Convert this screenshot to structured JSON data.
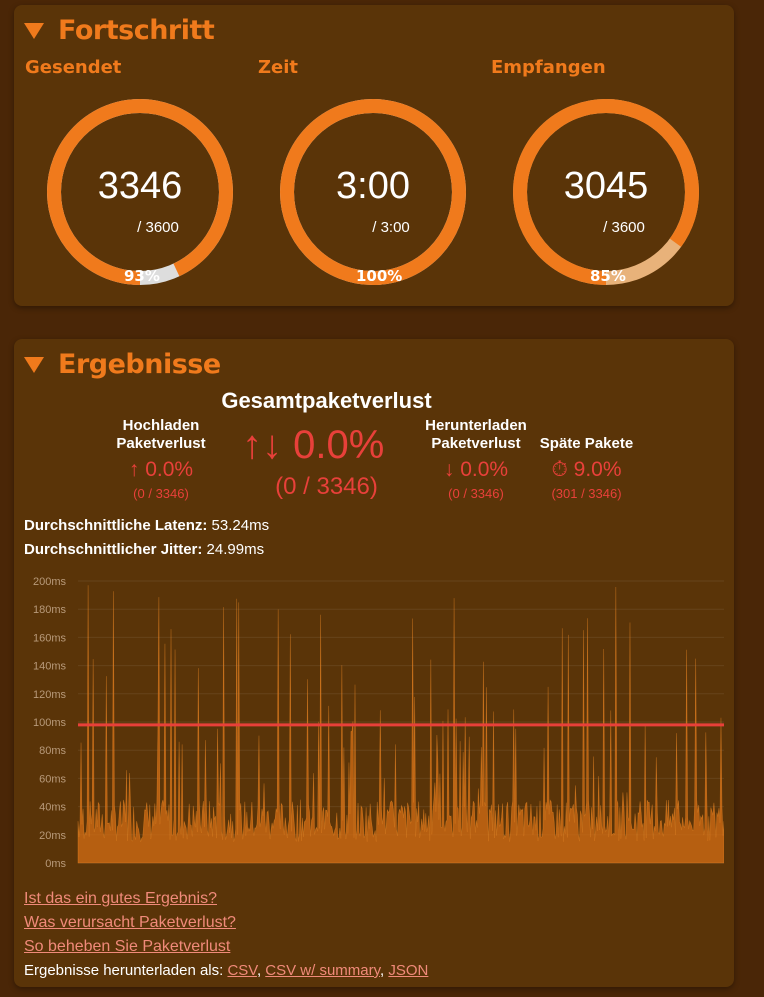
{
  "progress": {
    "title": "Fortschritt",
    "gauges": [
      {
        "label": "Gesendet",
        "value": "3346",
        "max_text": "/ 3600",
        "percent_text": "93%",
        "fraction": 0.93
      },
      {
        "label": "Zeit",
        "value": "3:00",
        "max_text": "/ 3:00",
        "percent_text": "100%",
        "fraction": 1.0
      },
      {
        "label": "Empfangen",
        "value": "3045",
        "max_text": "/ 3600",
        "percent_text": "85%",
        "fraction": 0.85
      }
    ]
  },
  "results": {
    "title": "Ergebnisse",
    "total": {
      "heading": "Gesamtpaketverlust",
      "icon": "↑↓",
      "value": "0.0%",
      "detail": "(0 / 3346)"
    },
    "upload": {
      "heading_line1": "Hochladen",
      "heading_line2": "Paketverlust",
      "icon": "↑",
      "value": "0.0%",
      "detail": "(0 / 3346)"
    },
    "download": {
      "heading_line1": "Herunterladen",
      "heading_line2": "Paketverlust",
      "icon": "↓",
      "value": "0.0%",
      "detail": "(0 / 3346)"
    },
    "late": {
      "heading": "Späte Pakete",
      "icon": "⏱",
      "value": "9.0%",
      "detail": "(301 / 3346)"
    },
    "avg_latency_label": "Durchschnittliche Latenz:",
    "avg_latency_value": "53.24ms",
    "avg_jitter_label": "Durchschnittlicher Jitter:",
    "avg_jitter_value": "24.99ms",
    "links": [
      "Ist das ein gutes Ergebnis?",
      "Was verursacht Paketverlust?",
      "So beheben Sie Paketverlust"
    ],
    "download_label": "Ergebnisse herunterladen als:",
    "download_links": [
      "CSV",
      "CSV w/ summary",
      "JSON"
    ],
    "download_separators": [
      ",",
      ","
    ]
  },
  "colors": {
    "accent": "#f07a1c",
    "panel": "#5a3408",
    "background": "#4a2607",
    "loss_red": "#e8403a",
    "threshold": "#e8403a"
  },
  "chart_data": {
    "type": "area",
    "ylim": [
      0,
      200
    ],
    "yticks": [
      "0ms",
      "20ms",
      "40ms",
      "60ms",
      "80ms",
      "100ms",
      "120ms",
      "140ms",
      "160ms",
      "180ms",
      "200ms"
    ],
    "x_count": 3346,
    "threshold_value": 98,
    "series": [
      {
        "baseline_range": [
          15,
          45
        ],
        "spike_max": 200
      }
    ]
  }
}
